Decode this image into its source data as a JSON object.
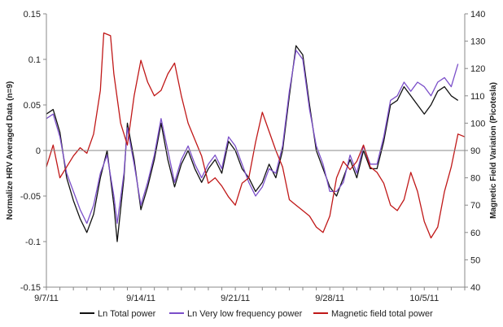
{
  "chart_data": {
    "type": "line",
    "title": "",
    "xlabel": "",
    "ylabel": "Normalize HRV Averaged Data (n=9)",
    "y2label": "Magnetic Field Variation (Picotesla)",
    "ylim": [
      -0.15,
      0.15
    ],
    "y2lim": [
      40,
      140
    ],
    "yticks": [
      "0.15",
      "0.1",
      "0.05",
      "0",
      "-0.05",
      "-0.1",
      "-0.15"
    ],
    "y2ticks": [
      "140",
      "130",
      "120",
      "110",
      "100",
      "90",
      "80",
      "70",
      "60",
      "50",
      "40"
    ],
    "xlim": [
      "2011-09-07",
      "2011-10-08"
    ],
    "xticks": [
      "9/7/11",
      "9/14/11",
      "9/21/11",
      "9/28/11",
      "10/5/11"
    ],
    "legend_position": "bottom",
    "colors": {
      "total_power": "#111111",
      "vlf_power": "#7b4fc9",
      "magnetic": "#c01818"
    },
    "series": [
      {
        "name": "Ln Total power",
        "axis": "left",
        "points": [
          [
            "2011-09-07",
            0.04
          ],
          [
            "2011-09-07T12",
            0.045
          ],
          [
            "2011-09-08",
            0.02
          ],
          [
            "2011-09-08T12",
            -0.03
          ],
          [
            "2011-09-09",
            -0.055
          ],
          [
            "2011-09-09T12",
            -0.075
          ],
          [
            "2011-09-10",
            -0.09
          ],
          [
            "2011-09-10T12",
            -0.07
          ],
          [
            "2011-09-11",
            -0.03
          ],
          [
            "2011-09-11T12",
            0.0
          ],
          [
            "2011-09-12",
            -0.06
          ],
          [
            "2011-09-12T06",
            -0.1
          ],
          [
            "2011-09-12T18",
            -0.03
          ],
          [
            "2011-09-13",
            0.03
          ],
          [
            "2011-09-13T12",
            -0.01
          ],
          [
            "2011-09-14",
            -0.065
          ],
          [
            "2011-09-14T12",
            -0.04
          ],
          [
            "2011-09-15",
            -0.01
          ],
          [
            "2011-09-15T12",
            0.03
          ],
          [
            "2011-09-16",
            -0.01
          ],
          [
            "2011-09-16T12",
            -0.04
          ],
          [
            "2011-09-17",
            -0.015
          ],
          [
            "2011-09-17T12",
            0.0
          ],
          [
            "2011-09-18",
            -0.02
          ],
          [
            "2011-09-18T12",
            -0.035
          ],
          [
            "2011-09-19",
            -0.02
          ],
          [
            "2011-09-19T12",
            -0.01
          ],
          [
            "2011-09-20",
            -0.025
          ],
          [
            "2011-09-20T12",
            0.01
          ],
          [
            "2011-09-21",
            0.0
          ],
          [
            "2011-09-21T12",
            -0.02
          ],
          [
            "2011-09-22",
            -0.03
          ],
          [
            "2011-09-22T12",
            -0.045
          ],
          [
            "2011-09-23",
            -0.035
          ],
          [
            "2011-09-23T12",
            -0.015
          ],
          [
            "2011-09-24",
            -0.03
          ],
          [
            "2011-09-24T12",
            0.0
          ],
          [
            "2011-09-25",
            0.06
          ],
          [
            "2011-09-25T12",
            0.115
          ],
          [
            "2011-09-26",
            0.105
          ],
          [
            "2011-09-26T12",
            0.05
          ],
          [
            "2011-09-27",
            0.0
          ],
          [
            "2011-09-27T12",
            -0.02
          ],
          [
            "2011-09-28",
            -0.04
          ],
          [
            "2011-09-28T12",
            -0.05
          ],
          [
            "2011-09-29",
            -0.03
          ],
          [
            "2011-09-29T12",
            -0.01
          ],
          [
            "2011-09-30",
            -0.03
          ],
          [
            "2011-09-30T12",
            0.0
          ],
          [
            "2011-10-01",
            -0.02
          ],
          [
            "2011-10-01T12",
            -0.02
          ],
          [
            "2011-10-02",
            0.01
          ],
          [
            "2011-10-02T12",
            0.05
          ],
          [
            "2011-10-03",
            0.055
          ],
          [
            "2011-10-03T12",
            0.07
          ],
          [
            "2011-10-04",
            0.06
          ],
          [
            "2011-10-04T12",
            0.05
          ],
          [
            "2011-10-05",
            0.04
          ],
          [
            "2011-10-05T12",
            0.05
          ],
          [
            "2011-10-06",
            0.065
          ],
          [
            "2011-10-06T12",
            0.07
          ],
          [
            "2011-10-07",
            0.06
          ],
          [
            "2011-10-07T12",
            0.055
          ]
        ]
      },
      {
        "name": "Ln Very low frequency power",
        "axis": "left",
        "points": [
          [
            "2011-09-07",
            0.035
          ],
          [
            "2011-09-07T12",
            0.04
          ],
          [
            "2011-09-08",
            0.015
          ],
          [
            "2011-09-08T12",
            -0.025
          ],
          [
            "2011-09-09",
            -0.045
          ],
          [
            "2011-09-09T12",
            -0.065
          ],
          [
            "2011-09-10",
            -0.08
          ],
          [
            "2011-09-10T12",
            -0.06
          ],
          [
            "2011-09-11",
            -0.025
          ],
          [
            "2011-09-11T12",
            -0.005
          ],
          [
            "2011-09-12",
            -0.05
          ],
          [
            "2011-09-12T06",
            -0.08
          ],
          [
            "2011-09-12T18",
            -0.025
          ],
          [
            "2011-09-13",
            0.025
          ],
          [
            "2011-09-13T12",
            -0.015
          ],
          [
            "2011-09-14",
            -0.06
          ],
          [
            "2011-09-14T12",
            -0.035
          ],
          [
            "2011-09-15",
            -0.005
          ],
          [
            "2011-09-15T12",
            0.035
          ],
          [
            "2011-09-16",
            0.0
          ],
          [
            "2011-09-16T12",
            -0.035
          ],
          [
            "2011-09-17",
            -0.01
          ],
          [
            "2011-09-17T12",
            0.005
          ],
          [
            "2011-09-18",
            -0.015
          ],
          [
            "2011-09-18T12",
            -0.03
          ],
          [
            "2011-09-19",
            -0.015
          ],
          [
            "2011-09-19T12",
            -0.005
          ],
          [
            "2011-09-20",
            -0.02
          ],
          [
            "2011-09-20T12",
            0.015
          ],
          [
            "2011-09-21",
            0.005
          ],
          [
            "2011-09-21T12",
            -0.015
          ],
          [
            "2011-09-22",
            -0.035
          ],
          [
            "2011-09-22T12",
            -0.05
          ],
          [
            "2011-09-23",
            -0.04
          ],
          [
            "2011-09-23T12",
            -0.02
          ],
          [
            "2011-09-24",
            -0.025
          ],
          [
            "2011-09-24T12",
            0.005
          ],
          [
            "2011-09-25",
            0.065
          ],
          [
            "2011-09-25T12",
            0.11
          ],
          [
            "2011-09-26",
            0.1
          ],
          [
            "2011-09-26T12",
            0.045
          ],
          [
            "2011-09-27",
            0.005
          ],
          [
            "2011-09-27T12",
            -0.015
          ],
          [
            "2011-09-28",
            -0.045
          ],
          [
            "2011-09-28T12",
            -0.045
          ],
          [
            "2011-09-29",
            -0.035
          ],
          [
            "2011-09-29T12",
            -0.005
          ],
          [
            "2011-09-30",
            -0.025
          ],
          [
            "2011-09-30T12",
            0.005
          ],
          [
            "2011-10-01",
            -0.015
          ],
          [
            "2011-10-01T12",
            -0.015
          ],
          [
            "2011-10-02",
            0.015
          ],
          [
            "2011-10-02T12",
            0.055
          ],
          [
            "2011-10-03",
            0.06
          ],
          [
            "2011-10-03T12",
            0.075
          ],
          [
            "2011-10-04",
            0.065
          ],
          [
            "2011-10-04T12",
            0.075
          ],
          [
            "2011-10-05",
            0.07
          ],
          [
            "2011-10-05T12",
            0.06
          ],
          [
            "2011-10-06",
            0.075
          ],
          [
            "2011-10-06T12",
            0.08
          ],
          [
            "2011-10-07",
            0.07
          ],
          [
            "2011-10-07T12",
            0.095
          ]
        ]
      },
      {
        "name": "Magnetic field total power",
        "axis": "right",
        "points": [
          [
            "2011-09-07",
            84
          ],
          [
            "2011-09-07T12",
            92
          ],
          [
            "2011-09-08",
            80
          ],
          [
            "2011-09-08T12",
            84
          ],
          [
            "2011-09-09",
            88
          ],
          [
            "2011-09-09T12",
            91
          ],
          [
            "2011-09-10",
            89
          ],
          [
            "2011-09-10T12",
            96
          ],
          [
            "2011-09-11",
            112
          ],
          [
            "2011-09-11T06",
            133
          ],
          [
            "2011-09-11T18",
            132
          ],
          [
            "2011-09-12",
            118
          ],
          [
            "2011-09-12T12",
            100
          ],
          [
            "2011-09-13",
            92
          ],
          [
            "2011-09-13T12",
            110
          ],
          [
            "2011-09-14",
            123
          ],
          [
            "2011-09-14T12",
            115
          ],
          [
            "2011-09-15",
            110
          ],
          [
            "2011-09-15T12",
            112
          ],
          [
            "2011-09-16",
            118
          ],
          [
            "2011-09-16T12",
            122
          ],
          [
            "2011-09-17",
            110
          ],
          [
            "2011-09-17T12",
            100
          ],
          [
            "2011-09-18",
            94
          ],
          [
            "2011-09-18T12",
            88
          ],
          [
            "2011-09-19",
            78
          ],
          [
            "2011-09-19T12",
            80
          ],
          [
            "2011-09-20",
            77
          ],
          [
            "2011-09-20T12",
            73
          ],
          [
            "2011-09-21",
            70
          ],
          [
            "2011-09-21T12",
            78
          ],
          [
            "2011-09-22",
            80
          ],
          [
            "2011-09-22T12",
            93
          ],
          [
            "2011-09-23",
            104
          ],
          [
            "2011-09-23T12",
            97
          ],
          [
            "2011-09-24",
            90
          ],
          [
            "2011-09-24T12",
            84
          ],
          [
            "2011-09-25",
            72
          ],
          [
            "2011-09-25T12",
            70
          ],
          [
            "2011-09-26",
            68
          ],
          [
            "2011-09-26T12",
            66
          ],
          [
            "2011-09-27",
            62
          ],
          [
            "2011-09-27T12",
            60
          ],
          [
            "2011-09-28",
            66
          ],
          [
            "2011-09-28T12",
            80
          ],
          [
            "2011-09-29",
            86
          ],
          [
            "2011-09-29T12",
            83
          ],
          [
            "2011-09-30",
            86
          ],
          [
            "2011-09-30T12",
            92
          ],
          [
            "2011-10-01",
            84
          ],
          [
            "2011-10-01T12",
            82
          ],
          [
            "2011-10-02",
            78
          ],
          [
            "2011-10-02T12",
            70
          ],
          [
            "2011-10-03",
            68
          ],
          [
            "2011-10-03T12",
            72
          ],
          [
            "2011-10-04",
            82
          ],
          [
            "2011-10-04T12",
            75
          ],
          [
            "2011-10-05",
            64
          ],
          [
            "2011-10-05T12",
            58
          ],
          [
            "2011-10-06",
            62
          ],
          [
            "2011-10-06T12",
            75
          ],
          [
            "2011-10-07",
            84
          ],
          [
            "2011-10-07T12",
            96
          ],
          [
            "2011-10-08",
            95
          ]
        ]
      }
    ]
  }
}
